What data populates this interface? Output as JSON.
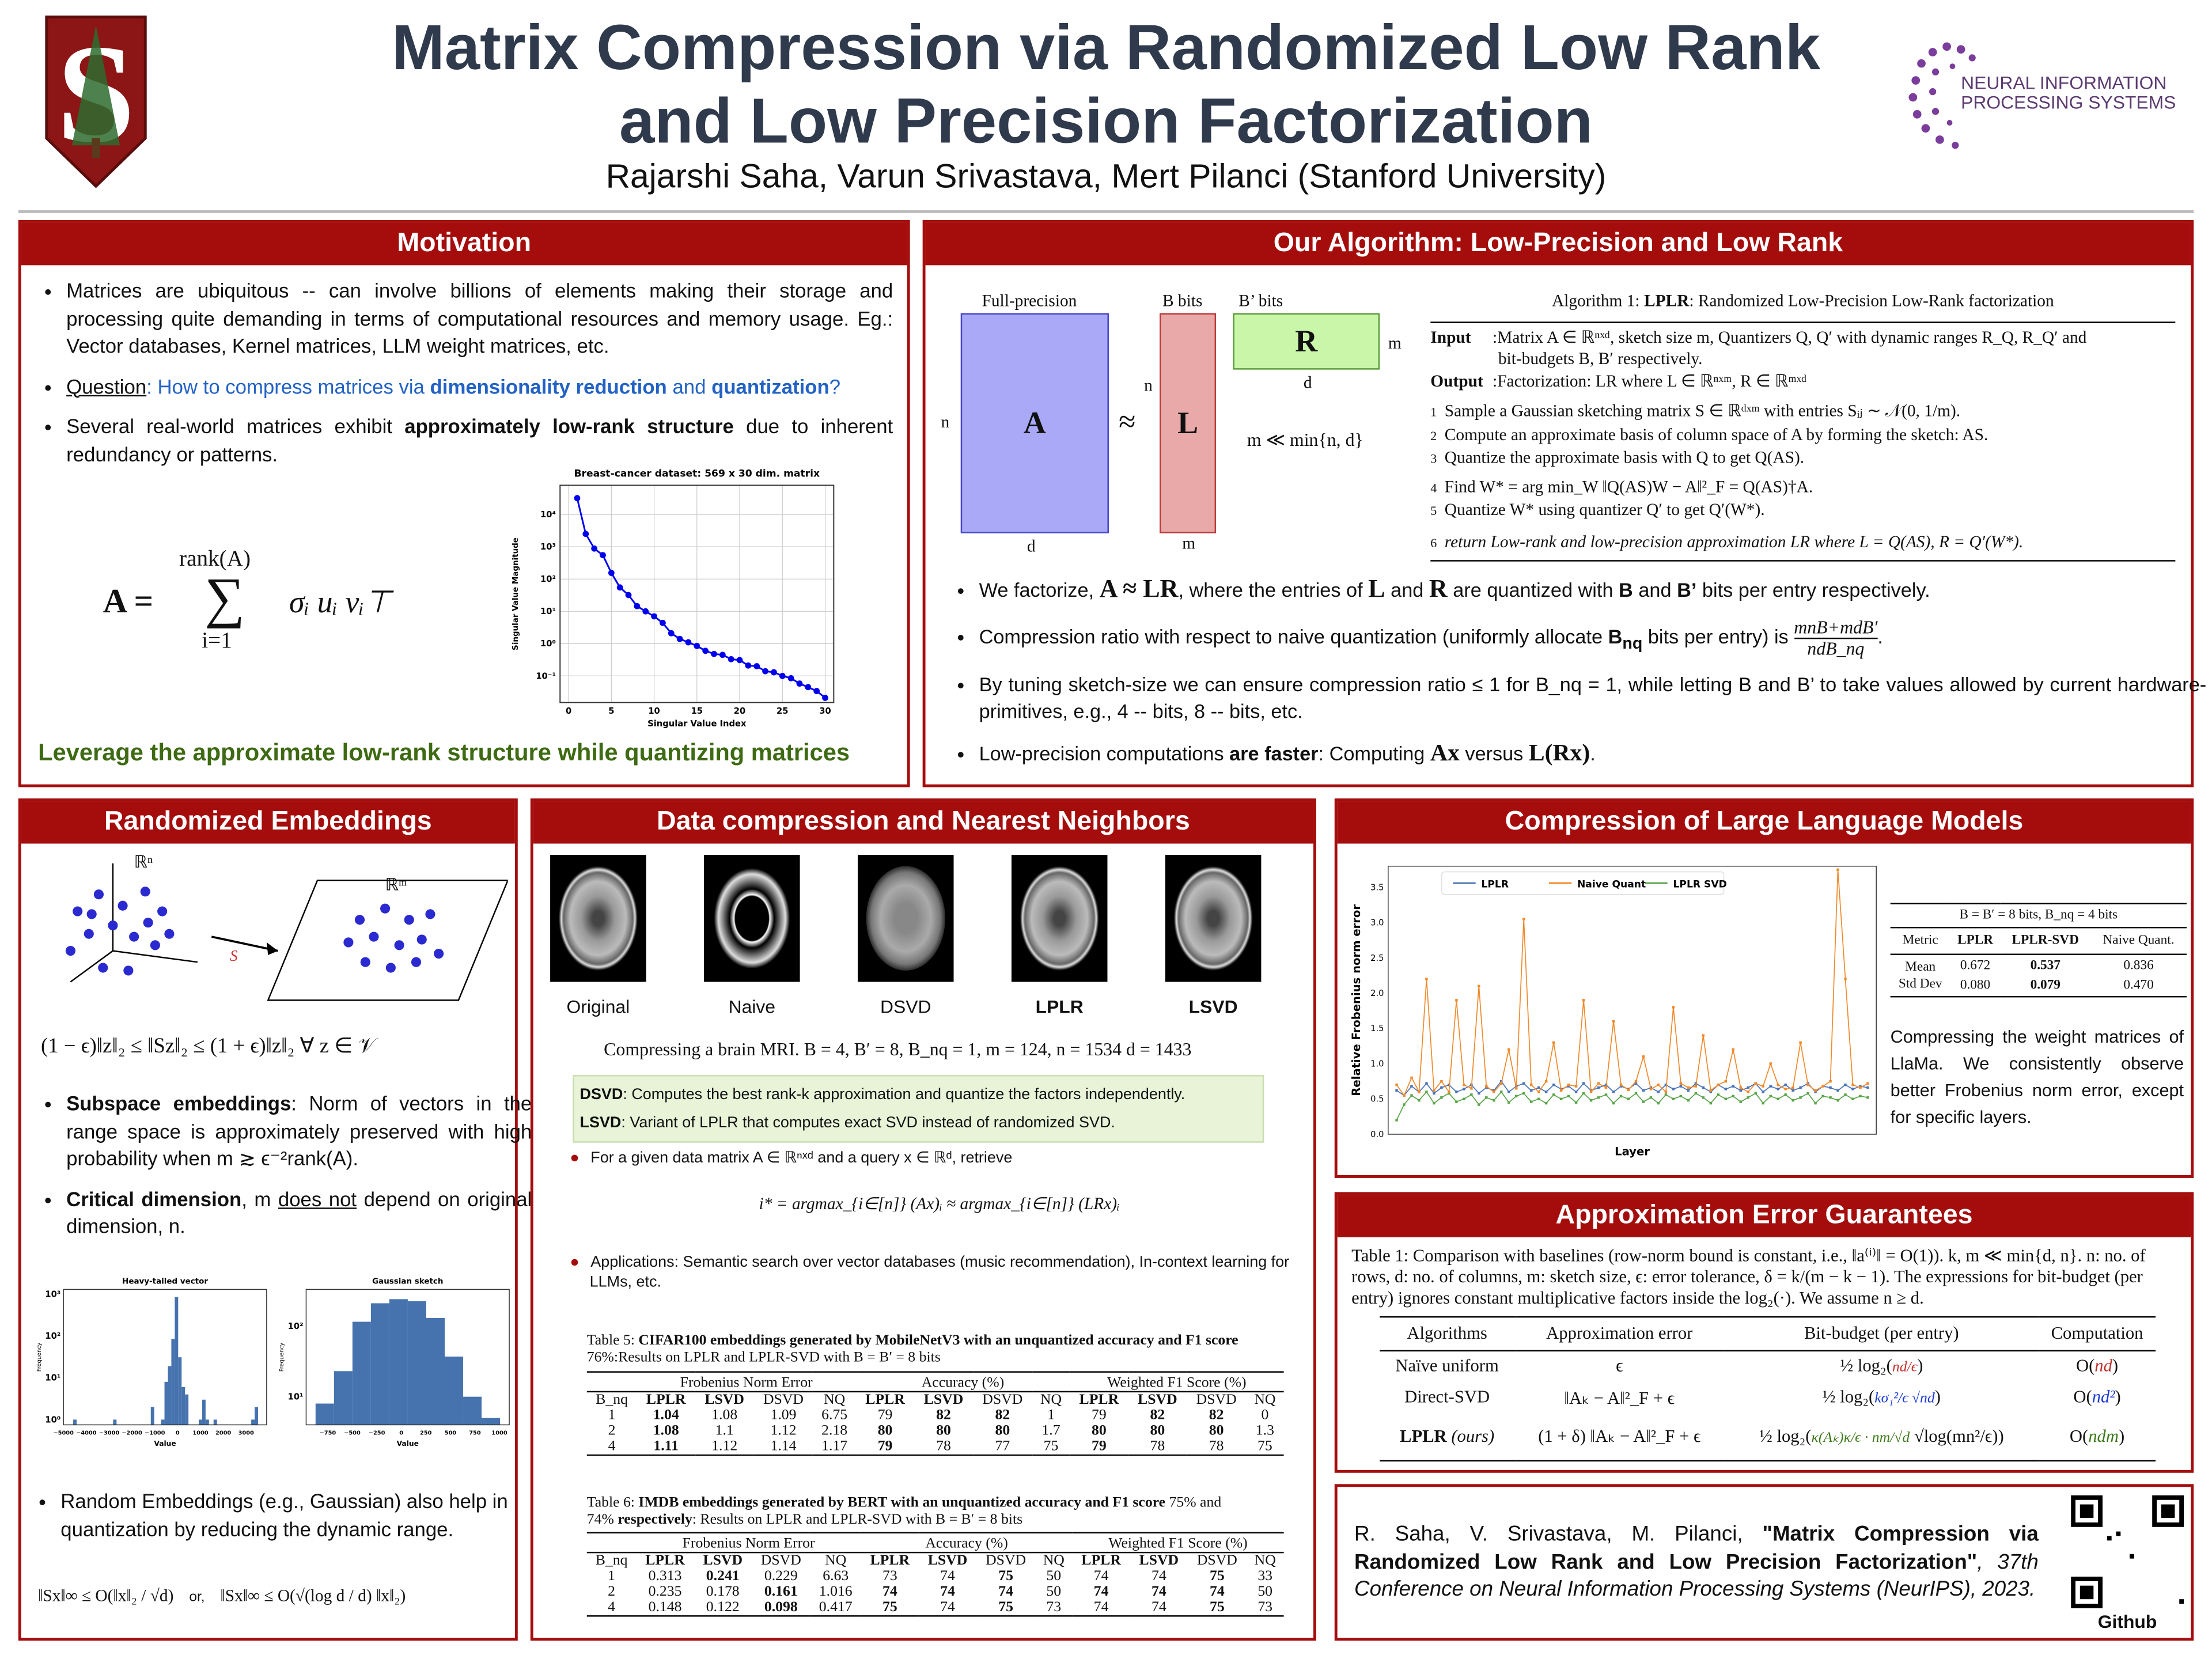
{
  "header": {
    "title_line1": "Matrix Compression via Randomized Low Rank",
    "title_line2": "and Low Precision Factorization",
    "authors": "Rajarshi Saha, Varun Srivastava, Mert Pilanci (Stanford University)",
    "logo_left": "S",
    "logo_right_line1": "NEURAL INFORMATION",
    "logo_right_line2": "PROCESSING SYSTEMS"
  },
  "colors": {
    "accent": "#a50d0d",
    "title": "#2f3a4c",
    "blue": "#2262c6",
    "green": "#3d6a12"
  },
  "motivation": {
    "heading": "Motivation",
    "bullet1": "Matrices are ubiquitous -- can involve billions of elements making their storage and processing quite demanding in terms of computational resources and memory usage. Eg.: Vector databases, Kernel matrices, LLM weight matrices, etc.",
    "q_label": "Question",
    "q_pre": ": How to compress matrices via ",
    "q_b1": "dimensionality reduction",
    "q_mid": " and ",
    "q_b2": "quantization",
    "q_end": "?",
    "b3_pre": "Several real-world matrices exhibit ",
    "b3_bold": "approximately low-rank structure",
    "b3_post": " due to inherent redundancy or patterns.",
    "eq_lhs": "A =",
    "eq_top": "rank(A)",
    "eq_sum": "∑",
    "eq_bot": "i=1",
    "eq_term": "σᵢ uᵢ vᵢ⊤",
    "takeaway": "Leverage the approximate low-rank structure while quantizing matrices"
  },
  "algorithm": {
    "heading": "Our Algorithm: Low-Precision and Low Rank",
    "diagram": {
      "full_precision": "Full-precision",
      "b_bits": "B bits",
      "bp_bits": "B’ bits",
      "A": "A",
      "L": "L",
      "R": "R",
      "approx": "≈",
      "n1": "n",
      "n2": "n",
      "d1": "d",
      "d2": "d",
      "m1": "m",
      "m2": "m",
      "constraint": "m ≪ min{n, d}"
    },
    "box": {
      "title_pre": "Algorithm 1: ",
      "title_bold": "LPLR",
      "title_post": ": Randomized Low-Precision Low-Rank factorization",
      "input_label": "Input",
      "input_text": ":Matrix A ∈ ℝⁿˣᵈ, sketch size m, Quantizers Q, Q′ with dynamic ranges R_Q, R_Q′ and",
      "input_text2": "bit-budgets B, B′ respectively.",
      "output_label": "Output",
      "output_text": ":Factorization: LR where L ∈ ℝⁿˣᵐ, R ∈ ℝᵐˣᵈ",
      "steps": [
        {
          "n": "1",
          "text": "Sample a Gaussian sketching matrix S ∈ ℝᵈˣᵐ with entries Sᵢⱼ ∼ 𝒩(0, 1/m)."
        },
        {
          "n": "2",
          "text": "Compute an approximate basis of column space of A by forming the sketch: AS."
        },
        {
          "n": "3",
          "text": "Quantize the approximate basis with Q to get Q(AS)."
        },
        {
          "n": "4",
          "text": "Find W* = arg min_W ‖Q(AS)W − A‖²_F = Q(AS)†A."
        },
        {
          "n": "5",
          "text": "Quantize W* using quantizer Q′ to get Q′(W*)."
        },
        {
          "n": "6",
          "text": "return Low-rank and low-precision approximation LR where L = Q(AS), R = Q′(W*)."
        }
      ]
    },
    "bullets": {
      "b1_a": "We factorize, ",
      "b1_m1": "A ≈ LR",
      "b1_b": ", where the entries of ",
      "b1_m2": "L",
      "b1_c": " and ",
      "b1_m3": "R",
      "b1_d": " are quantized with ",
      "b1_e": "B",
      "b1_f": " and ",
      "b1_g": "B’",
      "b1_h": " bits per entry respectively.",
      "b2_a": "Compression ratio with respect to naive quantization (uniformly allocate ",
      "b2_b": "B",
      "b2_sub": "nq",
      "b2_c": " bits per entry) is ",
      "b2_num": "mnB+mdB′",
      "b2_den": "ndB_nq",
      "b2_end": ".",
      "b3": "By tuning sketch-size we can ensure compression ratio ≤ 1 for B_nq = 1, while letting B and B’ to take values allowed by current hardware-primitives, e.g., 4 -- bits, 8 -- bits, etc.",
      "b4_a": "Low-precision computations ",
      "b4_b": "are faster",
      "b4_c": ": Computing ",
      "b4_m1": "Ax",
      "b4_d": " versus ",
      "b4_m2": "L(Rx)",
      "b4_e": "."
    }
  },
  "embeddings": {
    "heading": "Randomized Embeddings",
    "rn": "ℝⁿ",
    "rm": "ℝᵐ",
    "s_label": "S",
    "inequality": "(1 − ϵ)‖z‖₂ ≤ ‖Sz‖₂ ≤ (1 + ϵ)‖z‖₂   ∀ z ∈ 𝒱",
    "b1_bold": "Subspace embeddings",
    "b1_text": ": Norm of vectors in the range space is approximately preserved with high probability when m ≳ ϵ⁻²rank(A).",
    "b2_bold": "Critical dimension",
    "b2_a": ", m ",
    "b2_u": "does not",
    "b2_b": " depend on original dimension, n.",
    "b3": "Random Embeddings (e.g., Gaussian) also help in quantization by reducing the dynamic range.",
    "formula_left": "‖Sx‖∞ ≤ O(‖x‖₂ / √d)",
    "formula_or": "or,",
    "formula_right": "‖Sx‖∞ ≤ O(√(log d / d) ‖x‖₂)"
  },
  "datacomp": {
    "heading": "Data compression and Nearest Neighbors",
    "images": [
      {
        "label": "Original",
        "bold": false
      },
      {
        "label": "Naive",
        "bold": false
      },
      {
        "label": "DSVD",
        "bold": false
      },
      {
        "label": "LPLR",
        "bold": true
      },
      {
        "label": "LSVD",
        "bold": true
      }
    ],
    "caption": "Compressing a brain MRI. B = 4, B′ = 8, B_nq = 1, m = 124, n = 1534 d = 1433",
    "def1_b": "DSVD",
    "def1": ": Computes the best rank-k approximation and quantize the factors independently.",
    "def2_b": "LSVD",
    "def2": ": Variant of LPLR that computes exact SVD instead of randomized SVD.",
    "nn_text": "For a given data matrix A ∈ ℝⁿˣᵈ and a query x ∈ ℝᵈ, retrieve",
    "nn_eq": "i* = argmax_{i∈[n]} (Ax)ᵢ  ≈  argmax_{i∈[n]} (LRx)ᵢ",
    "apps": "Applications: Semantic search over vector databases (music recommendation), In-context learning for LLMs, etc.",
    "table5": {
      "cap_a": "Table 5: ",
      "cap_b": "CIFAR100 embeddings generated by MobileNetV3 with an unquantized accuracy and F1 score",
      "cap_c": "76%:Results on LPLR and LPLR-SVD with B = B′ = 8 bits",
      "groups": [
        "Frobenius Norm Error",
        "Accuracy (%)",
        "Weighted F1 Score (%)"
      ],
      "cols": [
        "B_nq",
        "LPLR",
        "LSVD",
        "DSVD",
        "NQ",
        "LPLR",
        "LSVD",
        "DSVD",
        "NQ",
        "LPLR",
        "LSVD",
        "DSVD",
        "NQ"
      ],
      "rows": [
        [
          "1",
          "1.04",
          "1.08",
          "1.09",
          "6.75",
          "79",
          "82",
          "82",
          "1",
          "79",
          "82",
          "82",
          "0"
        ],
        [
          "2",
          "1.08",
          "1.1",
          "1.12",
          "2.18",
          "80",
          "80",
          "80",
          "1.7",
          "80",
          "80",
          "80",
          "1.3"
        ],
        [
          "4",
          "1.11",
          "1.12",
          "1.14",
          "1.17",
          "79",
          "78",
          "77",
          "75",
          "79",
          "78",
          "78",
          "75"
        ]
      ],
      "bold": [
        [
          1,
          6,
          7,
          10,
          11
        ],
        [
          1,
          5,
          6,
          7,
          9,
          10,
          11
        ],
        [
          1,
          5,
          9
        ]
      ]
    },
    "table6": {
      "cap_a": "Table 6: ",
      "cap_b": "IMDB embeddings generated by BERT with an unquantized accuracy and F1 score",
      "cap_b2": " 75% and",
      "cap_c1": "74% ",
      "cap_c2": "respectively",
      "cap_c3": ": Results on LPLR and LPLR-SVD with B = B′ = 8 bits",
      "groups": [
        "Frobenius Norm Error",
        "Accuracy (%)",
        "Weighted F1 Score (%)"
      ],
      "cols": [
        "B_nq",
        "LPLR",
        "LSVD",
        "DSVD",
        "NQ",
        "LPLR",
        "LSVD",
        "DSVD",
        "NQ",
        "LPLR",
        "LSVD",
        "DSVD",
        "NQ"
      ],
      "rows": [
        [
          "1",
          "0.313",
          "0.241",
          "0.229",
          "6.63",
          "73",
          "74",
          "75",
          "50",
          "74",
          "74",
          "75",
          "33"
        ],
        [
          "2",
          "0.235",
          "0.178",
          "0.161",
          "1.016",
          "74",
          "74",
          "74",
          "50",
          "74",
          "74",
          "74",
          "50"
        ],
        [
          "4",
          "0.148",
          "0.122",
          "0.098",
          "0.417",
          "75",
          "74",
          "75",
          "73",
          "74",
          "74",
          "75",
          "73"
        ]
      ],
      "bold": [
        [
          2,
          7,
          11
        ],
        [
          3,
          5,
          6,
          7,
          9,
          10,
          11
        ],
        [
          3,
          5,
          7,
          11
        ]
      ]
    }
  },
  "llm": {
    "heading": "Compression of Large Language Models",
    "table": {
      "caption": "B = B′ = 8 bits, B_nq = 4 bits",
      "cols": [
        "Metric",
        "LPLR",
        "LPLR-SVD",
        "Naive Quant."
      ],
      "rows": [
        [
          "Mean",
          "0.672",
          "0.537",
          "0.836"
        ],
        [
          "Std Dev",
          "0.080",
          "0.079",
          "0.470"
        ]
      ]
    },
    "text": "Compressing the weight matrices of LlaMa. We consistently observe better Frobenius norm error, except for specific layers."
  },
  "guarantees": {
    "heading": "Approximation Error Guarantees",
    "caption": "Table 1: Comparison with baselines (row-norm bound is constant, i.e., ‖a⁽ⁱ⁾‖ = O(1)). k, m ≪ min{d, n}. n: no. of rows, d: no. of columns, m: sketch size, ϵ: error tolerance, δ = k/(m − k − 1). The expressions for bit-budget (per entry) ignores constant multiplicative factors inside the log₂(·). We assume n ≥ d.",
    "cols": [
      "Algorithms",
      "Approximation error",
      "Bit-budget (per entry)",
      "Computation"
    ],
    "rows": [
      {
        "alg": "Naïve uniform",
        "err": "ϵ",
        "bits_pre": "½ log₂(",
        "bits_c": "nd/ϵ",
        "bits_post": ")",
        "comp_pre": "O(",
        "comp_c": "nd",
        "comp_post": ")",
        "color": "#c0302a"
      },
      {
        "alg": "Direct-SVD",
        "err": "‖Aₖ − A‖²_F + ϵ",
        "bits_pre": "½ log₂(",
        "bits_c": "kσ₁²/ϵ √nd",
        "bits_post": ")",
        "comp_pre": "O(",
        "comp_c": "nd²",
        "comp_post": ")",
        "color": "#1a3ad6"
      },
      {
        "alg": "LPLR",
        "alg_it": " (ours)",
        "err": "(1 + δ) ‖Aₖ − A‖²_F + ϵ",
        "bits_pre": "½ log₂(",
        "bits_c": "κ(Aₖ)κ/ϵ · nm/√d",
        "bits_post": " √log(mn²/ϵ))",
        "comp_pre": "O(",
        "comp_c": "ndm",
        "comp_post": ")",
        "color": "#3d7a1a"
      }
    ]
  },
  "citation": {
    "a": "R. Saha, V. Srivastava, M. Pilanci, ",
    "b": "\"Matrix Compression via Randomized Low Rank and Low Precision Factorization\"",
    "c": ", 37th Conference on Neural Information Processing Systems (NeurIPS), 2023.",
    "qr_label": "Github"
  },
  "chart_data": [
    {
      "type": "line",
      "id": "singular-values",
      "title": "Breast-cancer dataset: 569 x 30 dim. matrix",
      "xlabel": "Singular Value Index",
      "ylabel": "Singular Value Magnitude",
      "yscale": "log",
      "xlim": [
        -1,
        31
      ],
      "ylim": [
        0.015,
        80000
      ],
      "grid": true,
      "xticks": [
        "0",
        "5",
        "10",
        "15",
        "20",
        "25",
        "30"
      ],
      "yticks": [
        "10⁴",
        "10³",
        "10²",
        "10¹",
        "10⁰",
        "10⁻¹"
      ],
      "x": [
        1,
        2,
        3,
        4,
        5,
        6,
        7,
        8,
        9,
        10,
        11,
        12,
        13,
        14,
        15,
        16,
        17,
        18,
        19,
        20,
        21,
        22,
        23,
        24,
        25,
        26,
        27,
        28,
        29,
        30
      ],
      "values": [
        32000,
        2500,
        880,
        550,
        155,
        55,
        32,
        14.5,
        10,
        7,
        4.4,
        2.1,
        1.4,
        1.1,
        0.85,
        0.6,
        0.48,
        0.45,
        0.33,
        0.31,
        0.21,
        0.2,
        0.14,
        0.13,
        0.1,
        0.085,
        0.058,
        0.045,
        0.034,
        0.021
      ],
      "color": "#0000ee"
    },
    {
      "type": "bar",
      "id": "heavy-tailed",
      "title": "Heavy-tailed vector",
      "xlabel": "Value",
      "ylabel": "Frequency",
      "yscale": "log",
      "xlim": [
        -5000,
        3900
      ],
      "ylim": [
        0.75,
        1300
      ],
      "xticks": [
        "−5000",
        "−4000",
        "−3000",
        "−2000",
        "−1000",
        "0",
        "1000",
        "2000",
        "3000"
      ],
      "yticks": [
        "10³",
        "10²",
        "10¹",
        "10⁰"
      ],
      "bin_width": 150,
      "bins": [
        -4500,
        -2750,
        -1100,
        -650,
        -500,
        -350,
        -200,
        -50,
        100,
        250,
        400,
        1000,
        1150,
        1300,
        1650,
        3300,
        3450
      ],
      "values": [
        1,
        1,
        2,
        1,
        8,
        19,
        85,
        850,
        31,
        6,
        4,
        1,
        3,
        1,
        1,
        1,
        2
      ],
      "color": "#4673ae"
    },
    {
      "type": "bar",
      "id": "gaussian-sketch",
      "title": "Gaussian sketch",
      "xlabel": "Value",
      "ylabel": "Frequency",
      "yscale": "log",
      "xlim": [
        -970,
        1100
      ],
      "ylim": [
        4,
        330
      ],
      "xticks": [
        "−750",
        "−500",
        "−250",
        "0",
        "250",
        "500",
        "750",
        "1000"
      ],
      "yticks": [
        "10²",
        "10¹"
      ],
      "bin_width": 188,
      "bins": [
        -780,
        -592,
        -404,
        -216,
        -28,
        160,
        348,
        536,
        724,
        912
      ],
      "values": [
        8,
        23,
        115,
        210,
        240,
        225,
        130,
        37,
        10,
        5
      ],
      "color": "#4673ae"
    },
    {
      "type": "line",
      "id": "llm-layers",
      "xlabel": "Layer",
      "ylabel": "Relative Frobenius norm error",
      "ylim": [
        0,
        3.8
      ],
      "yticks": [
        "0.0",
        "0.5",
        "1.0",
        "1.5",
        "2.0",
        "2.5",
        "3.0",
        "3.5"
      ],
      "legend": "top-left",
      "series": [
        {
          "name": "LPLR",
          "color": "#4a74b8",
          "values": [
            0.62,
            0.55,
            0.68,
            0.6,
            0.72,
            0.58,
            0.66,
            0.7,
            0.6,
            0.64,
            0.7,
            0.58,
            0.66,
            0.62,
            0.75,
            0.6,
            0.68,
            0.72,
            0.62,
            0.66,
            0.6,
            0.7,
            0.64,
            0.68,
            0.6,
            0.72,
            0.62,
            0.66,
            0.7,
            0.6,
            0.68,
            0.64,
            0.72,
            0.62,
            0.66,
            0.6,
            0.7,
            0.64,
            0.68,
            0.62,
            0.72,
            0.66,
            0.6,
            0.7,
            0.64,
            0.68,
            0.62,
            0.66,
            0.72,
            0.6,
            0.68,
            0.64,
            0.7,
            0.62,
            0.66,
            0.72,
            0.6,
            0.68,
            0.66,
            0.62,
            0.7,
            0.64,
            0.68,
            0.66
          ]
        },
        {
          "name": "Naive Quant",
          "color": "#f08a2c",
          "values": [
            0.7,
            0.55,
            0.8,
            0.6,
            2.2,
            0.62,
            0.75,
            0.6,
            1.9,
            0.7,
            0.65,
            2.1,
            0.68,
            0.6,
            0.72,
            1.2,
            0.65,
            3.05,
            0.7,
            0.6,
            0.75,
            1.3,
            0.62,
            0.7,
            0.68,
            1.9,
            0.6,
            0.72,
            0.66,
            1.6,
            0.7,
            0.63,
            0.75,
            1.1,
            0.64,
            0.7,
            0.6,
            1.8,
            0.72,
            0.66,
            0.68,
            1.4,
            0.62,
            0.7,
            0.75,
            1.2,
            0.66,
            0.6,
            0.72,
            0.68,
            1.0,
            0.7,
            0.64,
            0.66,
            1.3,
            0.7,
            0.62,
            0.68,
            0.75,
            3.75,
            2.2,
            0.7,
            0.66,
            0.72
          ]
        },
        {
          "name": "LPLR SVD",
          "color": "#5aa64a",
          "values": [
            0.2,
            0.42,
            0.55,
            0.48,
            0.6,
            0.44,
            0.52,
            0.58,
            0.46,
            0.5,
            0.56,
            0.42,
            0.52,
            0.48,
            0.6,
            0.45,
            0.54,
            0.58,
            0.46,
            0.5,
            0.44,
            0.56,
            0.5,
            0.54,
            0.45,
            0.58,
            0.48,
            0.52,
            0.56,
            0.44,
            0.54,
            0.5,
            0.58,
            0.46,
            0.52,
            0.44,
            0.56,
            0.5,
            0.54,
            0.48,
            0.58,
            0.52,
            0.44,
            0.56,
            0.5,
            0.54,
            0.46,
            0.52,
            0.58,
            0.44,
            0.54,
            0.5,
            0.56,
            0.48,
            0.52,
            0.58,
            0.44,
            0.54,
            0.52,
            0.48,
            0.56,
            0.5,
            0.54,
            0.52
          ]
        }
      ]
    }
  ]
}
